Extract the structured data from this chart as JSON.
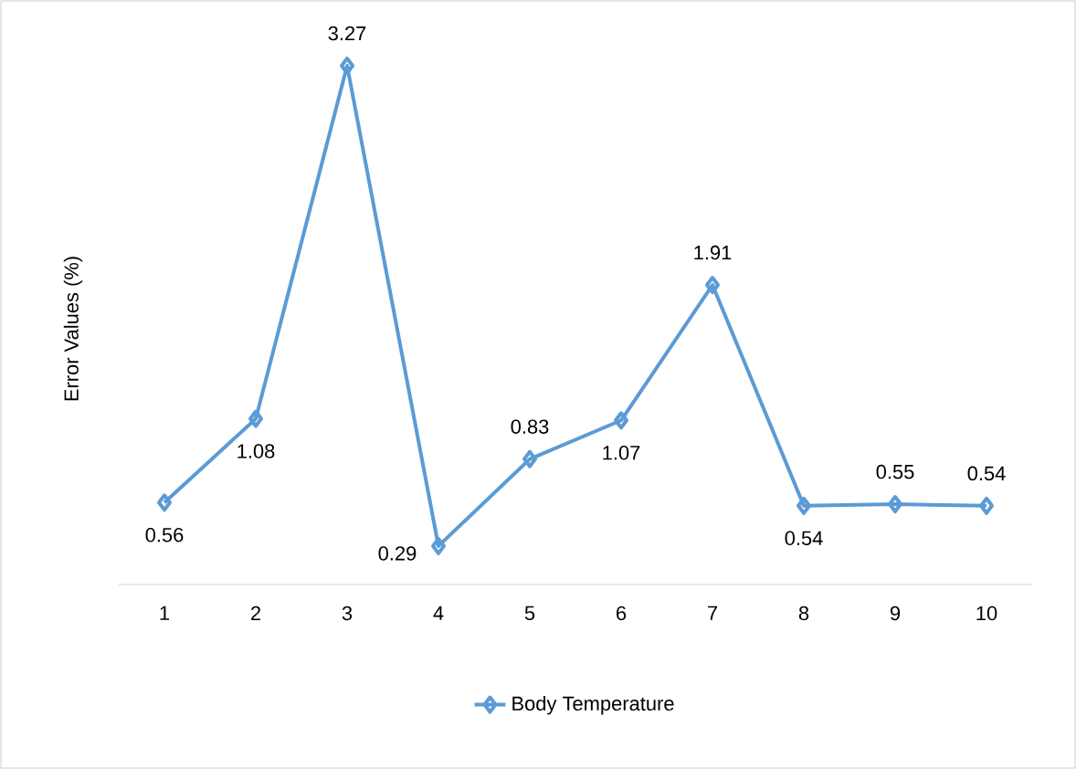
{
  "chart_data": {
    "type": "line",
    "ylabel": "Error Values (%)",
    "categories": [
      "1",
      "2",
      "3",
      "4",
      "5",
      "6",
      "7",
      "8",
      "9",
      "10"
    ],
    "series": [
      {
        "name": "Body Temperature",
        "color": "#5b9bd5",
        "values": [
          0.56,
          1.08,
          3.27,
          0.29,
          0.83,
          1.07,
          1.91,
          0.54,
          0.55,
          0.54
        ]
      }
    ],
    "tick_labels": "x",
    "data_labels": true,
    "legend": "bottom",
    "marker": "diamond"
  }
}
